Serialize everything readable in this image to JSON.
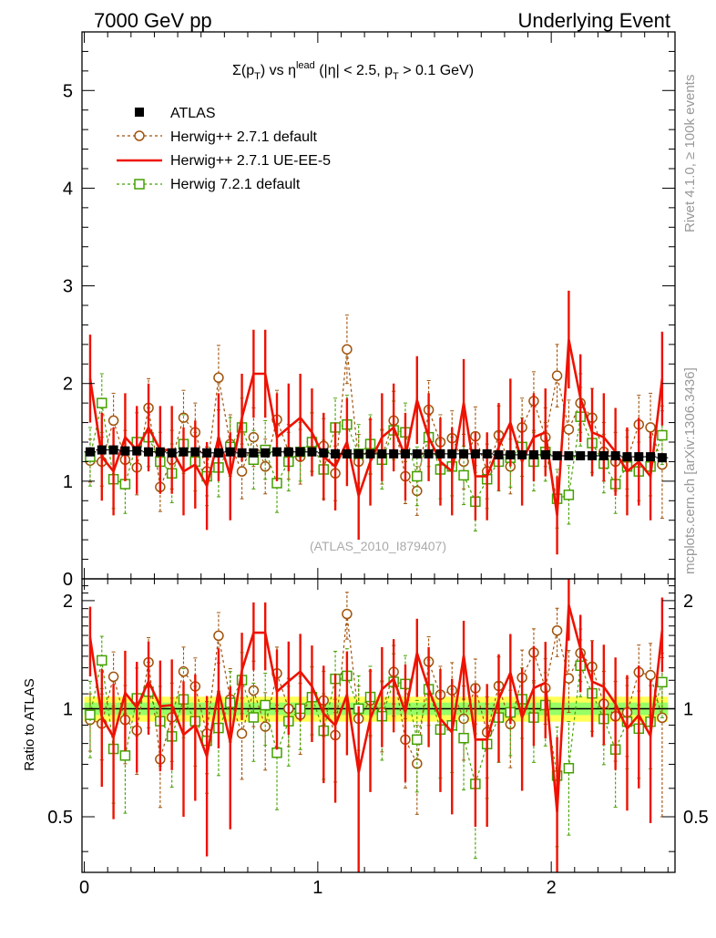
{
  "header": {
    "left": "7000 GeV pp",
    "right": "Underlying Event"
  },
  "side_labels": {
    "rivet": "Rivet 4.1.0, ≥ 100k events",
    "mcplots": "mcplots.cern.ch [arXiv:1306.3436]"
  },
  "colors": {
    "atlas": "#000000",
    "herwigpp_default": "#a0520a",
    "herwigpp_ueee5": "#ee1100",
    "herwig7_default": "#44a000",
    "band_inner": "#99ff66",
    "band_outer": "#ffff55"
  },
  "chart_data": [
    {
      "type": "line",
      "title": "Σ(pT) vs η^lead (|η| < 2.5, pT > 0.1 GeV)",
      "title_parts": {
        "sigma": "Σ(p",
        "sub1": "T",
        "vs": ") vs η",
        "sup": "lead",
        "cut": " (|η| < 2.5, p",
        "sub2": "T",
        "tail": " > 0.1 GeV)"
      },
      "annotation": "(ATLAS_2010_I879407)",
      "xlabel": "",
      "ylabel": "",
      "xlim": [
        -0.01,
        2.53
      ],
      "ylim": [
        0,
        5.6
      ],
      "xticks": [
        "0",
        "1",
        "2"
      ],
      "yticks": [
        "0",
        "1",
        "2",
        "3",
        "4",
        "5"
      ],
      "legend_position": "top-left",
      "x": [
        0.025,
        0.075,
        0.125,
        0.175,
        0.225,
        0.275,
        0.325,
        0.375,
        0.425,
        0.475,
        0.525,
        0.575,
        0.625,
        0.675,
        0.725,
        0.775,
        0.825,
        0.875,
        0.925,
        0.975,
        1.025,
        1.075,
        1.125,
        1.175,
        1.225,
        1.275,
        1.325,
        1.375,
        1.425,
        1.475,
        1.525,
        1.575,
        1.625,
        1.675,
        1.725,
        1.775,
        1.825,
        1.875,
        1.925,
        1.975,
        2.025,
        2.075,
        2.125,
        2.175,
        2.225,
        2.275,
        2.325,
        2.375,
        2.425,
        2.475
      ],
      "series": [
        {
          "name": "ATLAS",
          "style": "marker-square",
          "values": [
            1.3,
            1.32,
            1.32,
            1.31,
            1.31,
            1.3,
            1.3,
            1.29,
            1.3,
            1.3,
            1.29,
            1.29,
            1.3,
            1.29,
            1.29,
            1.29,
            1.3,
            1.3,
            1.3,
            1.3,
            1.29,
            1.28,
            1.28,
            1.28,
            1.28,
            1.28,
            1.28,
            1.28,
            1.28,
            1.28,
            1.28,
            1.28,
            1.28,
            1.28,
            1.28,
            1.27,
            1.27,
            1.27,
            1.27,
            1.27,
            1.26,
            1.26,
            1.26,
            1.26,
            1.26,
            1.26,
            1.25,
            1.25,
            1.25,
            1.24
          ],
          "errors": [
            0.04,
            0.04,
            0.04,
            0.04,
            0.04,
            0.04,
            0.04,
            0.04,
            0.04,
            0.04,
            0.04,
            0.04,
            0.04,
            0.04,
            0.04,
            0.04,
            0.04,
            0.04,
            0.04,
            0.04,
            0.04,
            0.04,
            0.04,
            0.04,
            0.04,
            0.04,
            0.04,
            0.04,
            0.04,
            0.04,
            0.04,
            0.04,
            0.04,
            0.04,
            0.04,
            0.04,
            0.04,
            0.04,
            0.04,
            0.04,
            0.04,
            0.04,
            0.04,
            0.04,
            0.04,
            0.04,
            0.04,
            0.04,
            0.04,
            0.04
          ]
        },
        {
          "name": "Herwig++ 2.7.1 default",
          "style": "dashed-circle",
          "values": [
            1.21,
            1.2,
            1.62,
            1.22,
            1.14,
            1.75,
            0.94,
            1.22,
            1.65,
            1.5,
            1.1,
            2.06,
            1.38,
            1.1,
            1.45,
            1.15,
            1.63,
            1.3,
            1.25,
            1.4,
            1.36,
            1.08,
            2.35,
            1.2,
            1.35,
            1.25,
            1.62,
            1.05,
            0.9,
            1.73,
            1.4,
            1.44,
            1.2,
            1.46,
            1.1,
            1.47,
            1.15,
            1.55,
            1.82,
            1.45,
            2.08,
            1.53,
            1.8,
            1.65,
            1.3,
            1.2,
            1.22,
            1.58,
            1.55,
            1.17
          ],
          "errors": [
            0.22,
            0.25,
            0.28,
            0.3,
            0.28,
            0.3,
            0.25,
            0.3,
            0.28,
            0.3,
            0.25,
            0.33,
            0.3,
            0.28,
            0.3,
            0.28,
            0.3,
            0.28,
            0.28,
            0.3,
            0.28,
            0.28,
            0.35,
            0.28,
            0.28,
            0.28,
            0.3,
            0.28,
            0.25,
            0.3,
            0.28,
            0.28,
            0.28,
            0.3,
            0.28,
            0.3,
            0.28,
            0.3,
            0.3,
            0.3,
            0.32,
            0.3,
            0.3,
            0.3,
            0.3,
            0.3,
            0.3,
            0.3,
            0.35,
            0.55
          ]
        },
        {
          "name": "Herwig++ 2.7.1 UE-EE-5",
          "style": "solid-line",
          "values": [
            2.05,
            1.25,
            1.1,
            1.45,
            1.32,
            1.55,
            1.32,
            1.32,
            1.1,
            1.17,
            0.95,
            1.45,
            1.05,
            1.65,
            2.1,
            2.1,
            1.45,
            1.55,
            1.65,
            1.5,
            1.25,
            1.15,
            1.4,
            0.85,
            1.2,
            1.45,
            1.55,
            1.25,
            1.83,
            1.45,
            1.2,
            1.1,
            1.8,
            1.05,
            1.05,
            1.35,
            1.6,
            1.2,
            1.45,
            1.5,
            0.65,
            2.45,
            1.85,
            1.5,
            1.45,
            1.3,
            1.1,
            1.2,
            1.05,
            2.05
          ],
          "errors": [
            0.45,
            0.45,
            0.45,
            0.45,
            0.45,
            0.45,
            0.45,
            0.45,
            0.45,
            0.45,
            0.45,
            0.45,
            0.45,
            0.45,
            0.45,
            0.45,
            0.45,
            0.45,
            0.45,
            0.45,
            0.45,
            0.45,
            0.45,
            0.45,
            0.45,
            0.45,
            0.45,
            0.45,
            0.45,
            0.45,
            0.45,
            0.45,
            0.45,
            0.45,
            0.45,
            0.45,
            0.45,
            0.45,
            0.45,
            0.45,
            0.4,
            0.5,
            0.45,
            0.45,
            0.45,
            0.45,
            0.45,
            0.45,
            0.45,
            0.48
          ]
        },
        {
          "name": "Herwig 7.2.1 default",
          "style": "dashed-square",
          "values": [
            1.25,
            1.8,
            1.02,
            0.97,
            1.4,
            1.45,
            1.2,
            1.08,
            1.38,
            1.2,
            1.05,
            1.14,
            1.35,
            1.55,
            1.22,
            1.32,
            0.98,
            1.2,
            1.3,
            1.4,
            1.12,
            1.55,
            1.58,
            1.28,
            1.38,
            1.22,
            1.52,
            1.5,
            1.05,
            1.45,
            1.12,
            1.15,
            1.06,
            0.79,
            1.02,
            1.2,
            1.24,
            1.35,
            1.2,
            1.3,
            0.82,
            0.86,
            1.66,
            1.39,
            1.18,
            0.97,
            1.15,
            1.1,
            1.15,
            1.47
          ],
          "errors": [
            0.3,
            0.3,
            0.3,
            0.3,
            0.3,
            0.3,
            0.3,
            0.3,
            0.3,
            0.3,
            0.3,
            0.3,
            0.3,
            0.3,
            0.3,
            0.3,
            0.3,
            0.3,
            0.3,
            0.3,
            0.3,
            0.3,
            0.3,
            0.3,
            0.3,
            0.3,
            0.3,
            0.3,
            0.3,
            0.3,
            0.3,
            0.3,
            0.3,
            0.3,
            0.3,
            0.3,
            0.3,
            0.3,
            0.3,
            0.3,
            0.3,
            0.3,
            0.3,
            0.3,
            0.3,
            0.3,
            0.3,
            0.3,
            0.3,
            0.3
          ]
        }
      ]
    },
    {
      "type": "line",
      "title": "",
      "xlabel": "",
      "ylabel": "Ratio to ATLAS",
      "xlim": [
        -0.01,
        2.53
      ],
      "ylim": [
        0.35,
        2.3
      ],
      "xticks": [
        "0",
        "1",
        "2"
      ],
      "yticks": [
        "0.5",
        "1",
        "2"
      ],
      "yticks_right": [
        "0.5",
        "1",
        "2"
      ],
      "reference_line": 1,
      "band_inner_halfwidth": 0.04,
      "band_outer_halfwidth": 0.08
    }
  ]
}
